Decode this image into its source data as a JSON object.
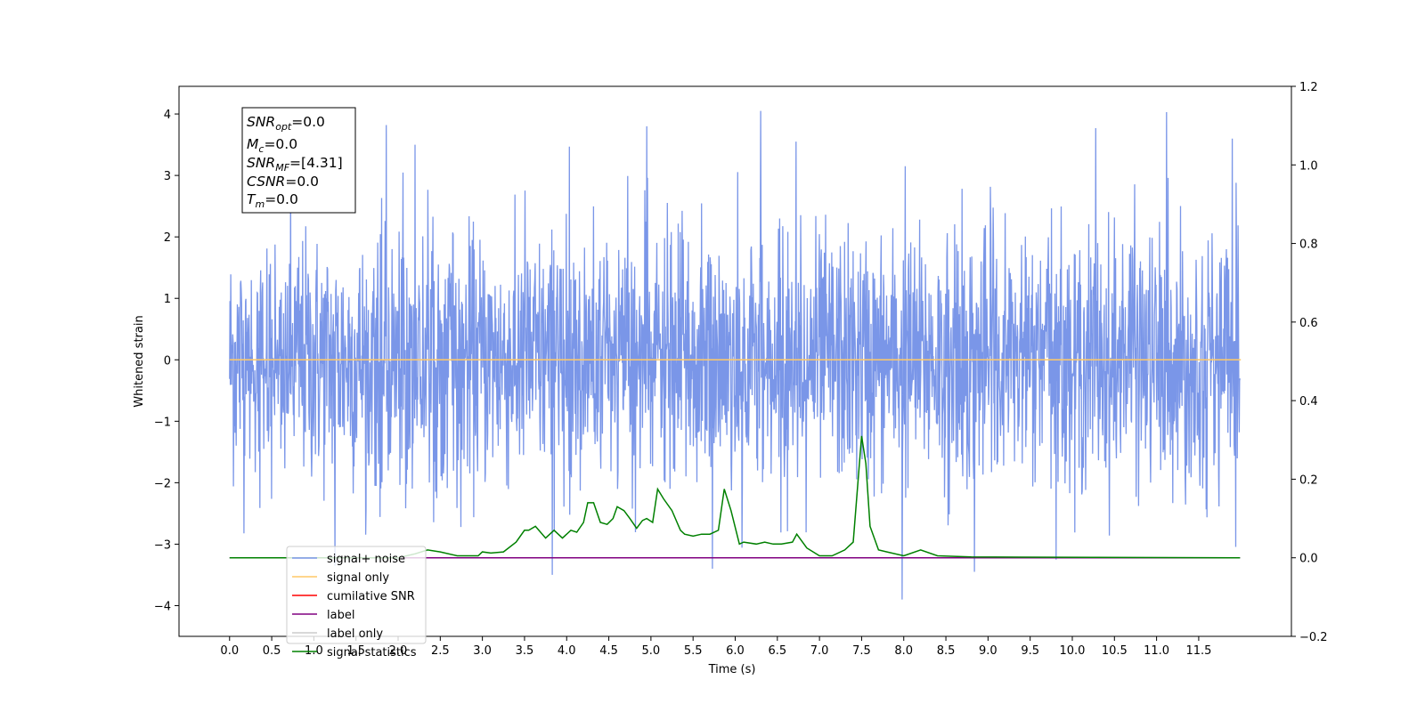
{
  "chart_data": {
    "type": "line",
    "xlabel": "Time (s)",
    "ylabel": "Whitened strain",
    "xlim": [
      -0.6,
      12.6
    ],
    "ylim": [
      -4.5,
      4.45
    ],
    "y2lim": [
      -0.2,
      1.2
    ],
    "x_ticks": [
      "0.0",
      "0.5",
      "1.0",
      "1.5",
      "2.0",
      "2.5",
      "3.0",
      "3.5",
      "4.0",
      "4.5",
      "5.0",
      "5.5",
      "6.0",
      "6.5",
      "7.0",
      "7.5",
      "8.0",
      "8.5",
      "9.0",
      "9.5",
      "10.0",
      "10.5",
      "11.0",
      "11.5"
    ],
    "y_ticks": [
      "4",
      "3",
      "2",
      "1",
      "0",
      "−1",
      "−2",
      "−3",
      "−4"
    ],
    "y2_ticks": [
      "1.2",
      "1.0",
      "0.8",
      "0.6",
      "0.4",
      "0.2",
      "0.0",
      "−0.2"
    ],
    "grid": false,
    "legend_placement": "lower-left",
    "info_box": {
      "snr_opt": "SNR",
      "snr_opt_sub": "opt",
      "snr_opt_val": "=0.0",
      "mc": "M",
      "mc_sub": "c",
      "mc_val": "=0.0",
      "snr_mf": "SNR",
      "snr_mf_sub": "MF",
      "snr_mf_val": "=[4.31]",
      "csnr": "CSNR",
      "csnr_val": "=0.0",
      "tm": "T",
      "tm_sub": "m",
      "tm_val": "=0.0"
    },
    "series": [
      {
        "name": "signal+ noise",
        "color": "#7a96e8",
        "axis": "left",
        "kind": "noise",
        "x_range": [
          0.0,
          11.99
        ],
        "typical_range": [
          -2.3,
          2.3
        ],
        "peaks": [
          [
            1.86,
            3.82
          ],
          [
            2.2,
            3.5
          ],
          [
            4.03,
            3.47
          ],
          [
            4.95,
            3.8
          ],
          [
            6.3,
            4.05
          ],
          [
            6.72,
            3.55
          ],
          [
            8.02,
            3.15
          ],
          [
            10.28,
            3.77
          ],
          [
            11.12,
            4.03
          ],
          [
            11.9,
            3.6
          ],
          [
            1.25,
            -3.35
          ],
          [
            3.83,
            -3.5
          ],
          [
            5.73,
            -3.4
          ],
          [
            7.98,
            -3.9
          ],
          [
            8.84,
            -3.45
          ],
          [
            9.81,
            -3.25
          ]
        ]
      },
      {
        "name": "signal only",
        "color": "#ffc966",
        "axis": "left",
        "x": [
          0.0,
          12.0
        ],
        "y": [
          0.0,
          0.0
        ]
      },
      {
        "name": "cumilative SNR",
        "color": "#ff0000",
        "axis": "right",
        "x": [],
        "y": []
      },
      {
        "name": "label",
        "color": "#800080",
        "axis": "right",
        "x": [
          0.0,
          11.99
        ],
        "y": [
          0.0,
          0.0
        ]
      },
      {
        "name": "label only",
        "color": "#cccccc",
        "axis": "right",
        "x": [],
        "y": []
      },
      {
        "name": "signal statistics",
        "color": "#008000",
        "axis": "right",
        "x": [
          0.0,
          2.0,
          2.2,
          2.35,
          2.5,
          2.7,
          2.95,
          3.0,
          3.1,
          3.25,
          3.4,
          3.5,
          3.55,
          3.63,
          3.75,
          3.85,
          3.95,
          4.05,
          4.12,
          4.2,
          4.25,
          4.32,
          4.4,
          4.48,
          4.55,
          4.6,
          4.68,
          4.75,
          4.83,
          4.9,
          4.95,
          5.02,
          5.08,
          5.15,
          5.25,
          5.35,
          5.4,
          5.5,
          5.6,
          5.7,
          5.8,
          5.87,
          5.95,
          6.05,
          6.1,
          6.25,
          6.35,
          6.45,
          6.55,
          6.68,
          6.73,
          6.85,
          7.0,
          7.15,
          7.3,
          7.4,
          7.5,
          7.55,
          7.6,
          7.7,
          7.8,
          8.0,
          8.2,
          8.4,
          8.8,
          11.99
        ],
        "y": [
          0.0,
          0.0,
          0.01,
          0.02,
          0.015,
          0.005,
          0.005,
          0.015,
          0.012,
          0.015,
          0.04,
          0.07,
          0.07,
          0.08,
          0.05,
          0.07,
          0.05,
          0.07,
          0.065,
          0.09,
          0.14,
          0.14,
          0.09,
          0.085,
          0.1,
          0.13,
          0.12,
          0.1,
          0.075,
          0.095,
          0.1,
          0.09,
          0.175,
          0.15,
          0.12,
          0.07,
          0.06,
          0.055,
          0.06,
          0.06,
          0.07,
          0.175,
          0.12,
          0.035,
          0.04,
          0.035,
          0.04,
          0.035,
          0.035,
          0.04,
          0.06,
          0.025,
          0.005,
          0.005,
          0.02,
          0.04,
          0.31,
          0.24,
          0.08,
          0.02,
          0.015,
          0.005,
          0.02,
          0.005,
          0.002,
          0.0
        ]
      }
    ]
  }
}
